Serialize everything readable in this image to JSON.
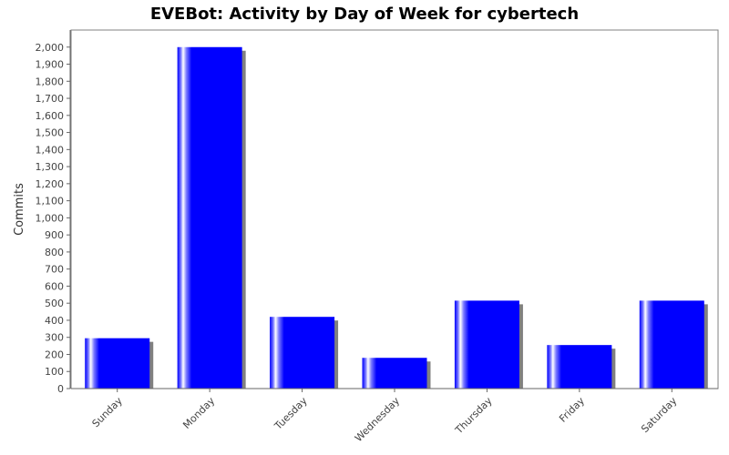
{
  "chart_data": {
    "type": "bar",
    "title": "EVEBot: Activity by Day of Week for cybertech",
    "xlabel": "",
    "ylabel": "Commits",
    "categories": [
      "Sunday",
      "Monday",
      "Tuesday",
      "Wednesday",
      "Thursday",
      "Friday",
      "Saturday"
    ],
    "values": [
      295,
      2000,
      420,
      180,
      515,
      255,
      515
    ],
    "ylim": [
      0,
      2100
    ],
    "yticks": [
      0,
      100,
      200,
      300,
      400,
      500,
      600,
      700,
      800,
      900,
      1000,
      1100,
      1200,
      1300,
      1400,
      1500,
      1600,
      1700,
      1800,
      1900,
      2000
    ],
    "ytick_labels": [
      "0",
      "100",
      "200",
      "300",
      "400",
      "500",
      "600",
      "700",
      "800",
      "900",
      "1,000",
      "1,100",
      "1,200",
      "1,300",
      "1,400",
      "1,500",
      "1,600",
      "1,700",
      "1,800",
      "1,900",
      "2,000"
    ],
    "grid": false,
    "legend": "none",
    "colors": {
      "bar": "#0000ff",
      "bar_highlight": "#ffffff",
      "shadow": "#808080",
      "plot_border": "#808080",
      "axis": "#555555"
    }
  }
}
